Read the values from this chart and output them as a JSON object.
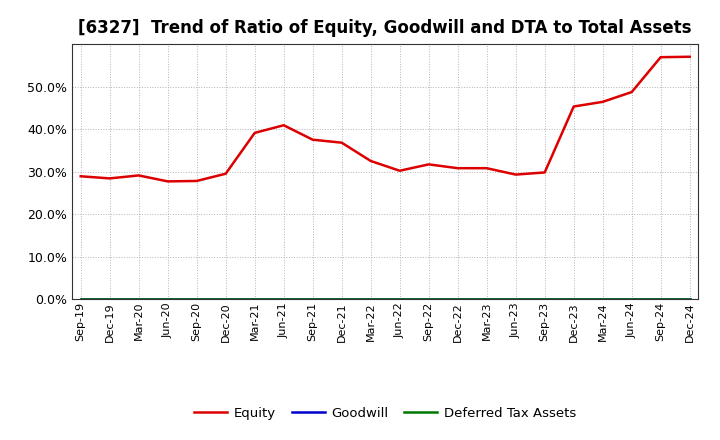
{
  "title": "[6327]  Trend of Ratio of Equity, Goodwill and DTA to Total Assets",
  "x_labels": [
    "Sep-19",
    "Dec-19",
    "Mar-20",
    "Jun-20",
    "Sep-20",
    "Dec-20",
    "Mar-21",
    "Jun-21",
    "Sep-21",
    "Dec-21",
    "Mar-22",
    "Jun-22",
    "Sep-22",
    "Dec-22",
    "Mar-23",
    "Jun-23",
    "Sep-23",
    "Dec-23",
    "Mar-24",
    "Jun-24",
    "Sep-24",
    "Dec-24"
  ],
  "equity": [
    0.289,
    0.284,
    0.291,
    0.277,
    0.278,
    0.295,
    0.391,
    0.409,
    0.375,
    0.368,
    0.325,
    0.302,
    0.317,
    0.308,
    0.308,
    0.293,
    0.298,
    0.453,
    0.464,
    0.487,
    0.569,
    0.57
  ],
  "goodwill": [
    0.0,
    0.0,
    0.0,
    0.0,
    0.0,
    0.0,
    0.0,
    0.0,
    0.0,
    0.0,
    0.0,
    0.0,
    0.0,
    0.0,
    0.0,
    0.0,
    0.0,
    0.0,
    0.0,
    0.0,
    0.0,
    0.0
  ],
  "dta": [
    0.0,
    0.0,
    0.0,
    0.0,
    0.0,
    0.0,
    0.0,
    0.0,
    0.0,
    0.0,
    0.0,
    0.0,
    0.0,
    0.0,
    0.0,
    0.0,
    0.0,
    0.0,
    0.0,
    0.0,
    0.0,
    0.0
  ],
  "equity_color": "#dd0000",
  "goodwill_color": "#0000cc",
  "dta_color": "#007700",
  "ylim": [
    0.0,
    0.6
  ],
  "yticks": [
    0.0,
    0.1,
    0.2,
    0.3,
    0.4,
    0.5
  ],
  "background_color": "#ffffff",
  "grid_color": "#aaaaaa",
  "title_fontsize": 12,
  "legend_labels": [
    "Equity",
    "Goodwill",
    "Deferred Tax Assets"
  ]
}
